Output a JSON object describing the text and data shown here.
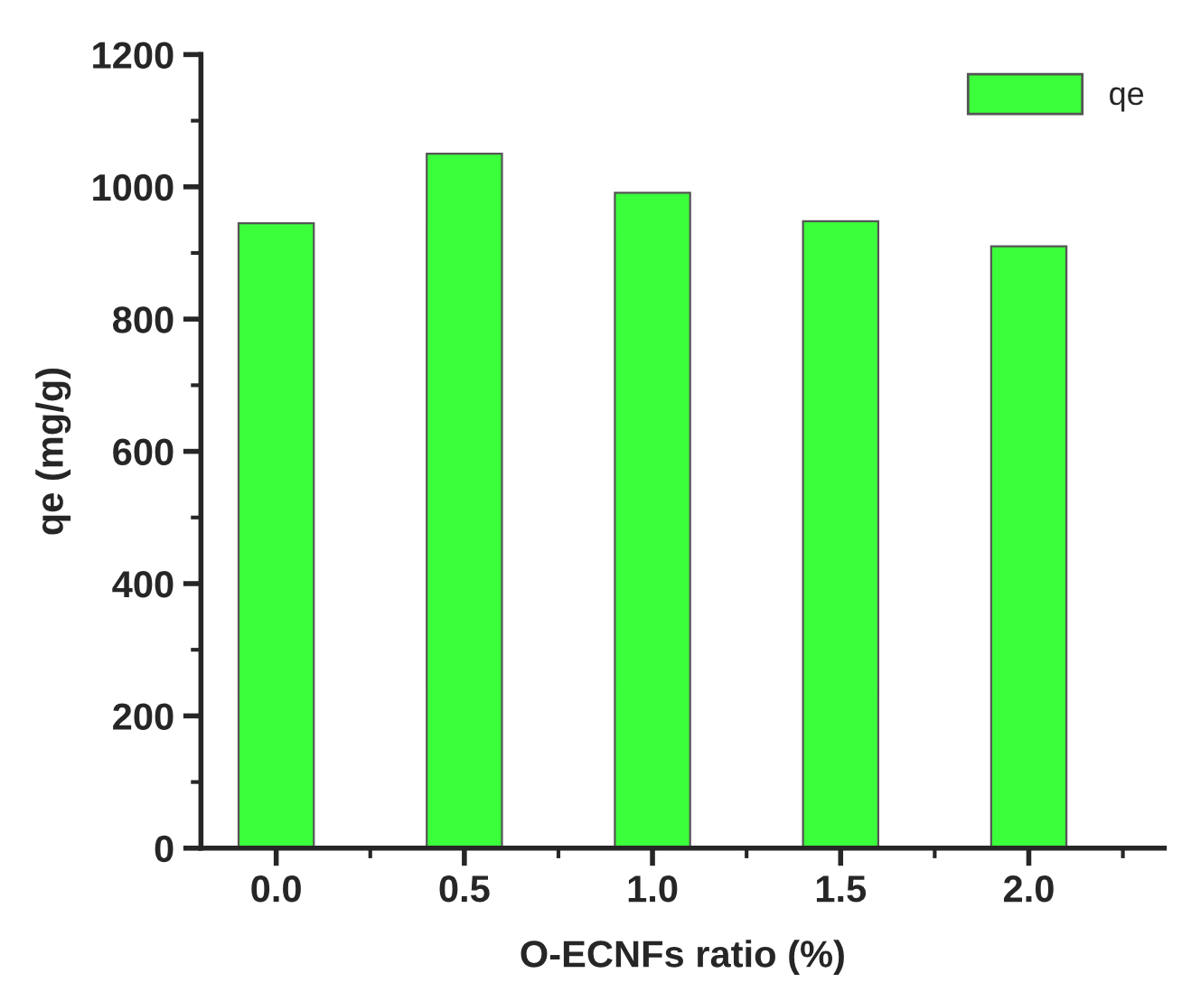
{
  "chart_data": {
    "type": "bar",
    "xlabel": "O-ECNFs ratio (%)",
    "ylabel": "qe (mg/g)",
    "x": [
      0,
      0.5,
      1.0,
      1.5,
      2.0
    ],
    "series": [
      {
        "name": "qe",
        "color": "#3cff3c",
        "values": [
          945,
          1050,
          991,
          948,
          910
        ]
      }
    ],
    "xlim": [
      -0.2,
      2.36
    ],
    "xticks": [
      {
        "value": 0,
        "label": "0.0"
      },
      {
        "value": 0.5,
        "label": "0.5"
      },
      {
        "value": 1.0,
        "label": "1.0"
      },
      {
        "value": 1.5,
        "label": "1.5"
      },
      {
        "value": 2.0,
        "label": "2.0"
      }
    ],
    "ylim": [
      0,
      1200
    ],
    "yticks": [
      0,
      200,
      400,
      600,
      800,
      1000,
      1200
    ],
    "grid": false,
    "legend": "top right"
  }
}
